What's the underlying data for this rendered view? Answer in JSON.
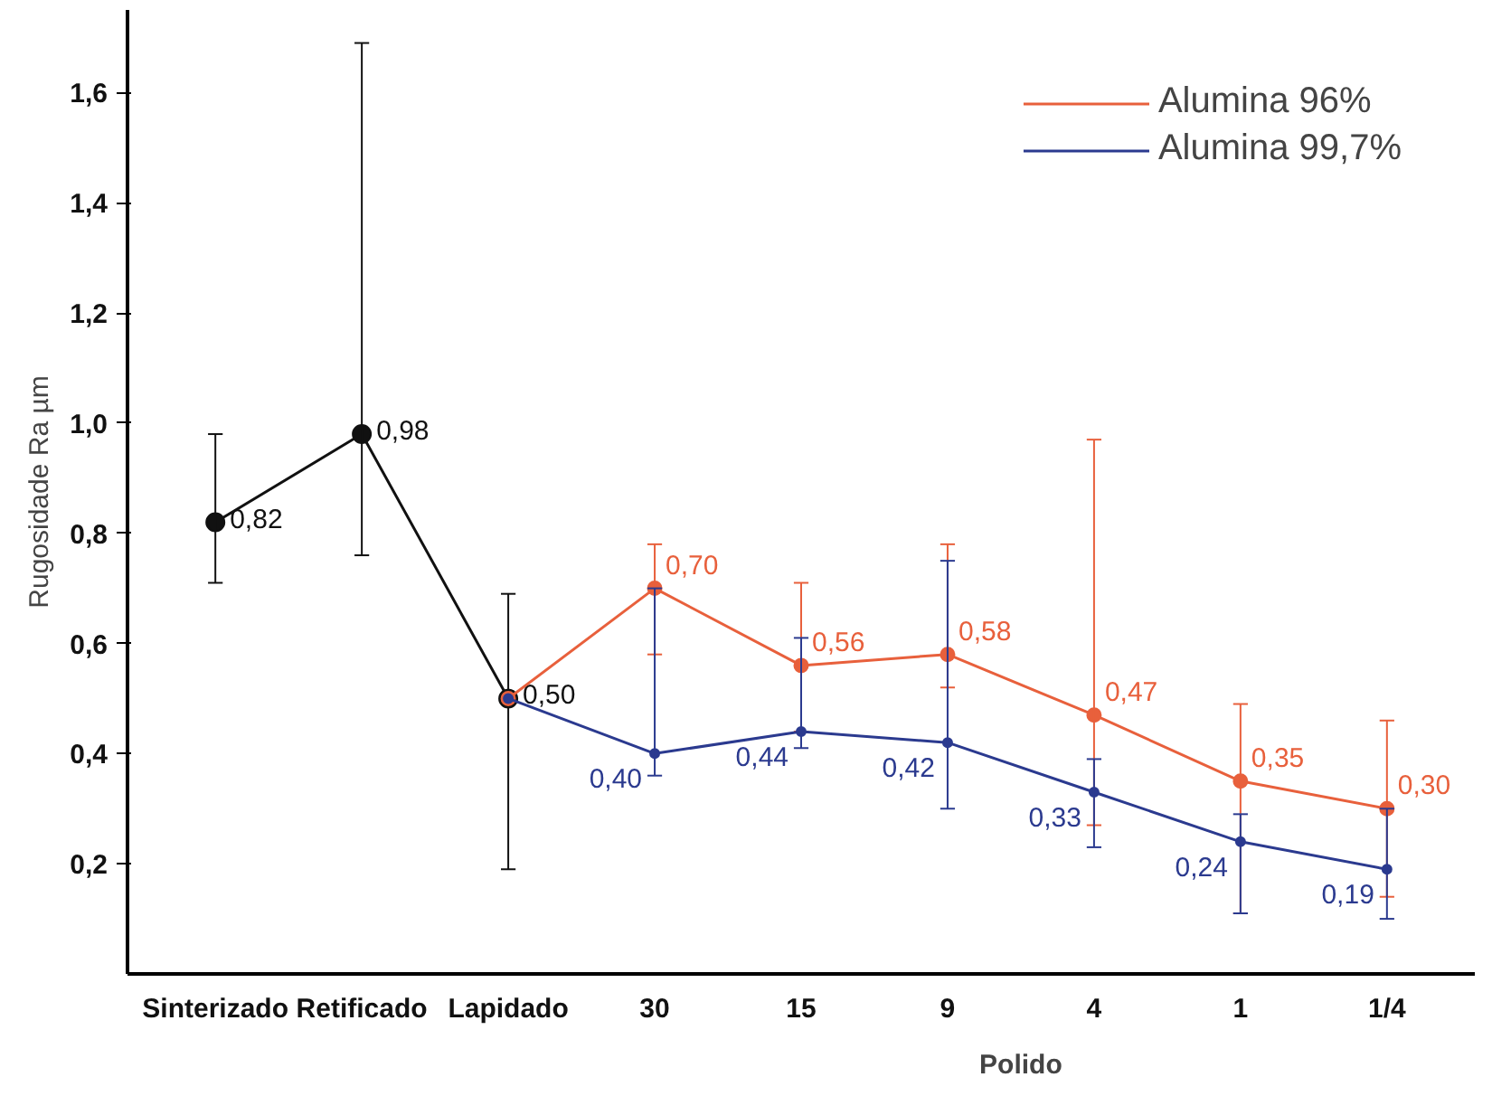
{
  "chart_data": {
    "type": "line",
    "ylabel": "Rugosidade Ra µm",
    "categories": [
      "Sinterizado",
      "Retificado",
      "Lapidado",
      "30",
      "15",
      "9",
      "4",
      "1",
      "1/4"
    ],
    "ylim": [
      0,
      1.75
    ],
    "yticks": [
      {
        "value": 0.2,
        "label": "0,2"
      },
      {
        "value": 0.4,
        "label": "0,4"
      },
      {
        "value": 0.6,
        "label": "0,6"
      },
      {
        "value": 0.8,
        "label": "0,8"
      },
      {
        "value": 1.0,
        "label": "1,0"
      },
      {
        "value": 1.2,
        "label": "1,2"
      },
      {
        "value": 1.4,
        "label": "1,4"
      },
      {
        "value": 1.6,
        "label": "1,6"
      }
    ],
    "series": [
      {
        "color": "#111111",
        "values": [
          0.82,
          0.98,
          0.5,
          null,
          null,
          null,
          null,
          null,
          null
        ],
        "errors": [
          [
            0.71,
            0.98
          ],
          [
            0.76,
            1.69
          ],
          [
            0.19,
            0.69
          ],
          null,
          null,
          null,
          null,
          null,
          null
        ],
        "value_labels": [
          "0,82",
          "0,98",
          "0,50",
          null,
          null,
          null,
          null,
          null,
          null
        ]
      },
      {
        "name": "Alumina 96%",
        "color": "#e8603c",
        "values": [
          null,
          null,
          0.5,
          0.7,
          0.56,
          0.58,
          0.47,
          0.35,
          0.3
        ],
        "errors": [
          null,
          null,
          null,
          [
            0.58,
            0.78
          ],
          [
            0.44,
            0.71
          ],
          [
            0.52,
            0.78
          ],
          [
            0.27,
            0.97
          ],
          [
            0.11,
            0.49
          ],
          [
            0.14,
            0.46
          ]
        ],
        "value_labels": [
          null,
          null,
          null,
          "0,70",
          "0,56",
          "0,58",
          "0,47",
          "0,35",
          "0,30"
        ]
      },
      {
        "name": "Alumina 99,7%",
        "color": "#2b3a8f",
        "values": [
          null,
          null,
          0.5,
          0.4,
          0.44,
          0.42,
          0.33,
          0.24,
          0.19
        ],
        "errors": [
          null,
          null,
          null,
          [
            0.36,
            0.7
          ],
          [
            0.41,
            0.61
          ],
          [
            0.3,
            0.75
          ],
          [
            0.23,
            0.39
          ],
          [
            0.11,
            0.29
          ],
          [
            0.1,
            0.3
          ]
        ],
        "value_labels": [
          null,
          null,
          null,
          "0,40",
          "0,44",
          "0,42",
          "0,33",
          "0,24",
          "0,19"
        ]
      }
    ],
    "annotations": [
      "Polido"
    ],
    "grid": false,
    "legend": "top right",
    "marker": "circle",
    "line_style": "solid"
  }
}
